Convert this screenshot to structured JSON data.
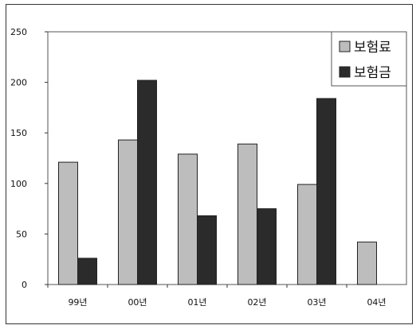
{
  "chart_data": {
    "type": "bar",
    "title": "",
    "xlabel": "",
    "ylabel": "",
    "categories": [
      "99년",
      "00년",
      "01년",
      "02년",
      "03년",
      "04년"
    ],
    "series": [
      {
        "name": "보험료",
        "values": [
          121,
          143,
          129,
          139,
          99,
          42
        ],
        "color": "#bdbdbd"
      },
      {
        "name": "보험금",
        "values": [
          26,
          202,
          68,
          75,
          184,
          null
        ],
        "color": "#2b2b2b"
      }
    ],
    "ylim": [
      0,
      250
    ],
    "yticks": [
      "0",
      "50",
      "100",
      "150",
      "200",
      "250"
    ],
    "grid": false,
    "legend_position": "top-right"
  }
}
